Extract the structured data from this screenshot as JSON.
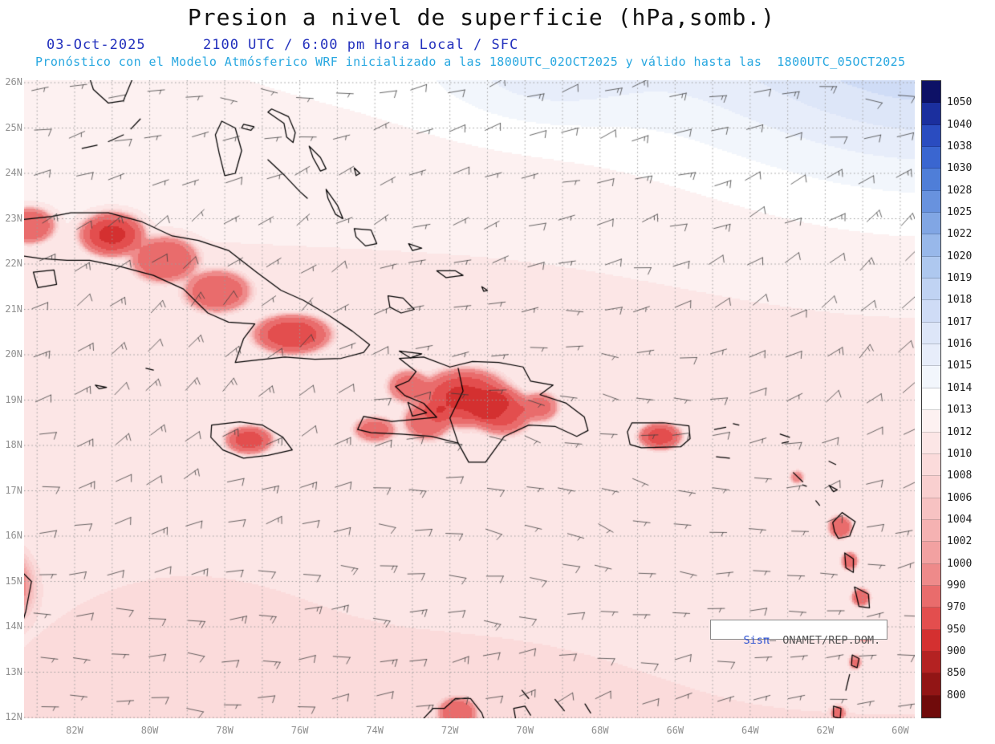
{
  "header": {
    "title": "Presion a nivel de superficie (hPa,somb.)",
    "date": "03-Oct-2025",
    "time_line": "2100 UTC / 6:00 pm Hora Local / SFC",
    "forecast_line": "Pronóstico con el Modelo Atmósferico WRF inicializado a las 1800UTC_02OCT2025 y válido hasta las  1800UTC_05OCT2025"
  },
  "map": {
    "lat_labels": [
      "26N",
      "25N",
      "24N",
      "23N",
      "22N",
      "21N",
      "20N",
      "19N",
      "18N",
      "17N",
      "16N",
      "15N",
      "14N",
      "13N",
      "12N"
    ],
    "lon_labels": [
      "82W",
      "80W",
      "78W",
      "76W",
      "74W",
      "72W",
      "70W",
      "68W",
      "66W",
      "64W",
      "62W",
      "60W"
    ],
    "watermark": {
      "brand": "Sisπ",
      "separator": "— ",
      "org": "ONAMET/REP.DOM."
    }
  },
  "colorbar": {
    "unit": "hPa",
    "labels": [
      "1050",
      "1040",
      "1038",
      "1030",
      "1028",
      "1025",
      "1022",
      "1020",
      "1019",
      "1018",
      "1017",
      "1016",
      "1015",
      "1014",
      "1013",
      "1012",
      "1010",
      "1008",
      "1006",
      "1004",
      "1002",
      "1000",
      "990",
      "970",
      "950",
      "900",
      "850",
      "800"
    ],
    "colors": [
      "#0d1166",
      "#1b2f9e",
      "#2a4cc0",
      "#3a66d0",
      "#4f7ed8",
      "#6892de",
      "#81a6e4",
      "#98b8ea",
      "#aec8ef",
      "#c0d3f3",
      "#cfdcf6",
      "#dde6f8",
      "#e7edfa",
      "#f2f6fc",
      "#ffffff",
      "#fdf1f1",
      "#fce6e6",
      "#fbdbdb",
      "#f9cfcf",
      "#f7c2c2",
      "#f5b2b2",
      "#f2a1a1",
      "#ee8a8a",
      "#e96c6c",
      "#e34e4e",
      "#d43030",
      "#b42222",
      "#921515",
      "#700b0b"
    ]
  },
  "chart_data": {
    "type": "heatmap",
    "title": "Presion a nivel de superficie (hPa,somb.)",
    "units": "hPa",
    "x_ticks": [
      "82W",
      "80W",
      "78W",
      "76W",
      "74W",
      "72W",
      "70W",
      "68W",
      "66W",
      "64W",
      "62W",
      "60W"
    ],
    "y_ticks": [
      "26N",
      "25N",
      "24N",
      "23N",
      "22N",
      "21N",
      "20N",
      "19N",
      "18N",
      "17N",
      "16N",
      "15N",
      "14N",
      "13N",
      "12N"
    ],
    "x_range_deg_west": [
      83.35,
      59.6
    ],
    "y_range_deg_north": [
      12,
      26
    ],
    "color_levels": [
      1050,
      1040,
      1038,
      1030,
      1028,
      1025,
      1022,
      1020,
      1019,
      1018,
      1017,
      1016,
      1015,
      1014,
      1013,
      1012,
      1010,
      1008,
      1006,
      1004,
      1002,
      1000,
      990,
      970,
      950,
      900,
      850,
      800
    ],
    "legend_position": "right",
    "grid": "dotted",
    "depicts": "Surface pressure shading over the Caribbean with easterly trade-wind barbs; higher pressure (blue/white shades) to the northeast, reduced pressure (pink/red shades) over Cuba, Hispaniola, Jamaica, Puerto Rico and the Lesser Antilles"
  }
}
